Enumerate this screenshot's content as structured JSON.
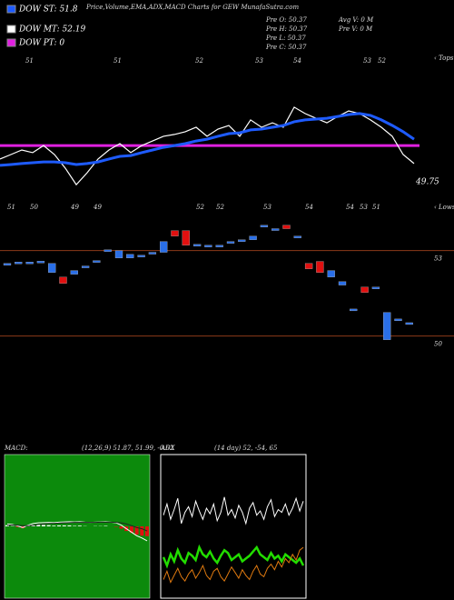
{
  "chart_data": [
    {
      "type": "line",
      "title": "Price,Volume,EMA,ADX,MACD Charts for GEW MunafaSutra.com",
      "indicators": [
        {
          "label": "DOW ST: 51.8",
          "color": "#1e5bff"
        },
        {
          "label": "DOW MT: 52.19",
          "color": "#ffffff"
        },
        {
          "label": "DOW PT: 0",
          "color": "#e020e0"
        }
      ],
      "stats": [
        [
          "Pre  O: 50.37",
          "Pre  H: 50.37",
          "Pre  L: 50.37",
          "Pre  C: 50.37"
        ],
        [
          "Avg V: 0  M",
          "Pre  V: 0  M"
        ]
      ],
      "tops": [
        "51",
        "51",
        "52",
        "53",
        "54",
        "53",
        "52"
      ],
      "tops_marker": "‹ Tops",
      "lows": [
        "51",
        "50",
        "49",
        "49",
        "52",
        "52",
        "53",
        "54",
        "54",
        "53",
        "51"
      ],
      "lows_marker": "‹ Lows",
      "last_label": "49.75",
      "ylim": [
        49,
        54.5
      ],
      "reference_line": {
        "value": 51.06,
        "color": "#e020e0"
      },
      "series": [
        {
          "color": "#ffffff",
          "width": 1.2,
          "values": [
            50.55,
            50.72,
            50.89,
            50.79,
            51.06,
            50.72,
            50.2,
            49.58,
            50.03,
            50.55,
            50.89,
            51.13,
            50.79,
            51.06,
            51.23,
            51.41,
            51.48,
            51.58,
            51.75,
            51.41,
            51.68,
            51.82,
            51.41,
            52.03,
            51.75,
            51.92,
            51.75,
            52.51,
            52.27,
            52.09,
            51.92,
            52.16,
            52.37,
            52.27,
            52.03,
            51.75,
            51.41,
            50.72,
            50.38
          ]
        },
        {
          "color": "#1e5bff",
          "width": 3,
          "values": [
            50.31,
            50.34,
            50.38,
            50.41,
            50.44,
            50.44,
            50.41,
            50.34,
            50.38,
            50.44,
            50.55,
            50.65,
            50.68,
            50.79,
            50.89,
            50.99,
            51.06,
            51.13,
            51.23,
            51.3,
            51.41,
            51.51,
            51.54,
            51.65,
            51.68,
            51.75,
            51.82,
            51.96,
            52.03,
            52.06,
            52.09,
            52.16,
            52.23,
            52.27,
            52.2,
            52.03,
            51.82,
            51.58,
            51.3
          ]
        }
      ]
    },
    {
      "type": "candlestick",
      "ylim": [
        49,
        55
      ],
      "levels": [
        53,
        50
      ],
      "level_color": "#8b3a1a",
      "up_color": "#2a6fe8",
      "down_color": "#e01010",
      "open": [
        52.55,
        52.6,
        52.6,
        52.63,
        52.23,
        52.07,
        52.17,
        52.46,
        52.65,
        53.03,
        52.74,
        52.74,
        52.84,
        52.94,
        52.94,
        53.7,
        53.7,
        53.22,
        53.19,
        53.19,
        53.32,
        53.38,
        53.38,
        53.89,
        53.77,
        53.89,
        53.51,
        52.55,
        52.62,
        52.07,
        51.79,
        50.95,
        51.72,
        51.72,
        49.87,
        50.6,
        50.47
      ],
      "close": [
        52.55,
        52.6,
        52.6,
        52.63,
        52.55,
        51.85,
        52.3,
        52.46,
        52.65,
        53.03,
        53.0,
        52.87,
        52.84,
        52.94,
        53.32,
        53.51,
        53.19,
        53.22,
        53.19,
        53.19,
        53.32,
        53.38,
        53.51,
        53.89,
        53.77,
        53.77,
        53.51,
        52.36,
        52.23,
        52.3,
        51.91,
        50.95,
        51.53,
        51.72,
        50.83,
        50.6,
        50.47
      ]
    },
    {
      "type": "macd",
      "label": "MACD:",
      "params": "(12,26,9) 51.87, 51.99, -0.62",
      "background": "#0c8a0c",
      "ylim": [
        -3,
        3
      ],
      "series": [
        {
          "color": "#ffffff",
          "values": [
            0.1,
            0.08,
            0.02,
            -0.05,
            0.05,
            0.12,
            0.15,
            0.16,
            0.17,
            0.16,
            0.18,
            0.19,
            0.2,
            0.19,
            0.2,
            0.18,
            0.17,
            0.18,
            0.19,
            0.2,
            0.18,
            0.15,
            0.05,
            -0.1,
            -0.25,
            -0.4,
            -0.5,
            -0.62
          ]
        },
        {
          "color": "#222222",
          "values": [
            0.05,
            0.06,
            0.05,
            0.03,
            0.03,
            0.05,
            0.08,
            0.1,
            0.12,
            0.13,
            0.14,
            0.15,
            0.16,
            0.17,
            0.17,
            0.17,
            0.17,
            0.17,
            0.18,
            0.18,
            0.18,
            0.17,
            0.15,
            0.1,
            0.03,
            -0.05,
            -0.1,
            -0.2
          ]
        }
      ],
      "histogram": [
        0.05,
        0.02,
        -0.03,
        -0.08,
        0.02,
        0.07,
        0.07,
        0.06,
        0.05,
        0.03,
        0.04,
        0.04,
        0.04,
        0.02,
        0.03,
        0.01,
        0,
        0.01,
        0.01,
        0.02,
        0,
        -0.02,
        -0.1,
        -0.2,
        -0.28,
        -0.35,
        -0.4,
        -0.42
      ],
      "pos_color": "#ffffff",
      "neg_color": "#e01010"
    },
    {
      "type": "adx",
      "label": "ADX",
      "params": "(14 day) 52, -54, 65",
      "ylim": [
        0,
        100
      ],
      "series": [
        {
          "color": "#ffffff",
          "values": [
            58,
            66,
            55,
            62,
            70,
            52,
            60,
            64,
            57,
            68,
            61,
            55,
            63,
            59,
            66,
            54,
            60,
            71,
            58,
            62,
            56,
            65,
            60,
            52,
            63,
            67,
            58,
            61,
            55,
            64,
            69,
            57,
            62,
            60,
            66,
            58,
            63,
            70,
            61,
            68
          ]
        },
        {
          "color": "#22dd00",
          "width": 2.5,
          "values": [
            28,
            22,
            30,
            25,
            33,
            27,
            24,
            31,
            29,
            26,
            35,
            30,
            28,
            32,
            27,
            24,
            29,
            33,
            31,
            26,
            28,
            30,
            25,
            27,
            29,
            32,
            35,
            30,
            28,
            26,
            31,
            27,
            29,
            25,
            30,
            28,
            26,
            24,
            27,
            22
          ]
        },
        {
          "color": "#e07a10",
          "values": [
            12,
            18,
            10,
            15,
            20,
            14,
            11,
            16,
            19,
            13,
            17,
            22,
            15,
            12,
            18,
            20,
            14,
            11,
            16,
            21,
            17,
            13,
            19,
            15,
            12,
            18,
            22,
            16,
            14,
            20,
            23,
            19,
            25,
            21,
            27,
            24,
            30,
            26,
            33,
            35
          ]
        }
      ]
    }
  ]
}
